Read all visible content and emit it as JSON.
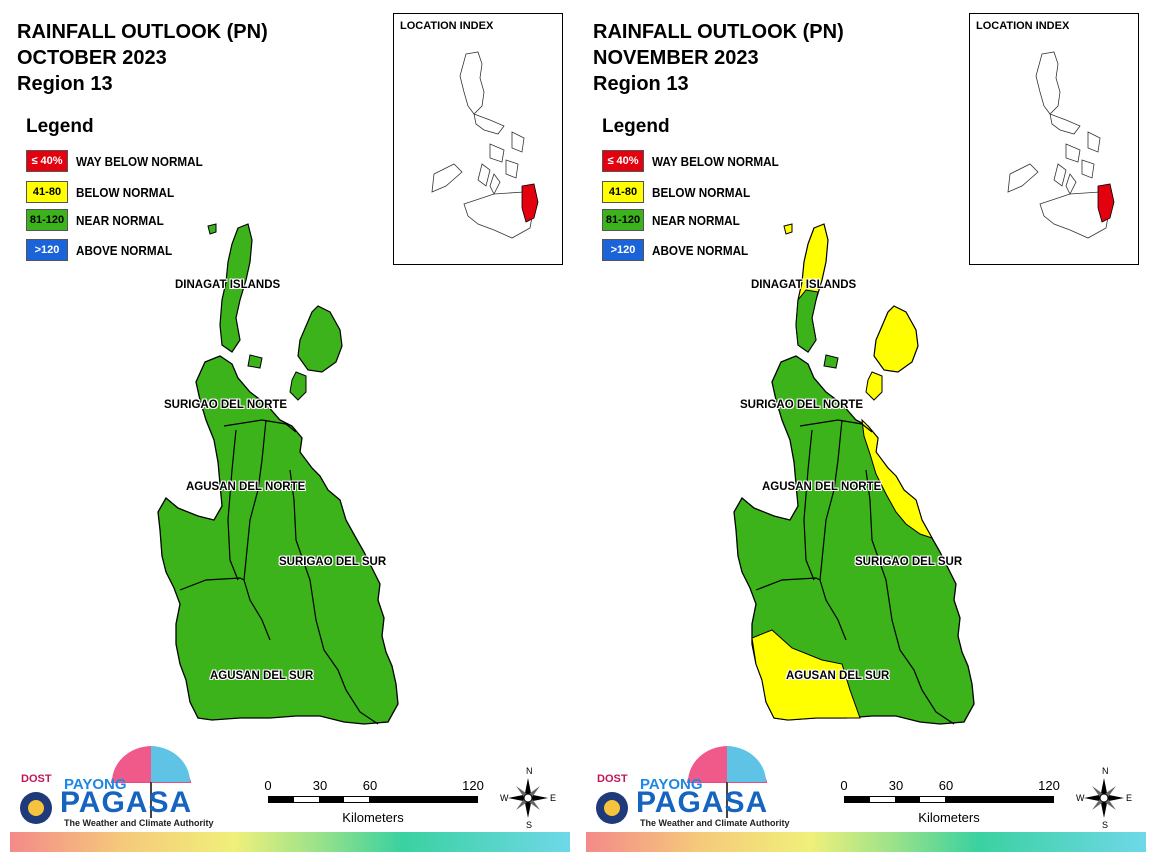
{
  "legend": {
    "title": "Legend",
    "items": [
      {
        "swatch": "≤ 40%",
        "label": "WAY BELOW NORMAL",
        "color": "#e3000f",
        "text_color": "#ffffff"
      },
      {
        "swatch": "41-80",
        "label": "BELOW NORMAL",
        "color": "#ffff00",
        "text_color": "#000000"
      },
      {
        "swatch": "81-120",
        "label": "NEAR NORMAL",
        "color": "#3cb21b",
        "text_color": "#000000"
      },
      {
        "swatch": ">120",
        "label": "ABOVE NORMAL",
        "color": "#1a63d8",
        "text_color": "#ffffff"
      }
    ]
  },
  "colors": {
    "near_normal": "#3cb21b",
    "below_normal": "#ffff00",
    "way_below_normal": "#e3000f",
    "above_normal": "#1a63d8"
  },
  "location_index": {
    "title": "LOCATION INDEX",
    "highlight_color": "#e3000f"
  },
  "provinces": [
    "DINAGAT ISLANDS",
    "SURIGAO DEL NORTE",
    "AGUSAN DEL NORTE",
    "SURIGAO DEL SUR",
    "AGUSAN DEL SUR"
  ],
  "scale_bar": {
    "ticks": [
      "0",
      "30",
      "60",
      "120"
    ],
    "unit": "Kilometers"
  },
  "compass": {
    "n": "N",
    "s": "S",
    "e": "E",
    "w": "W"
  },
  "logo": {
    "dost": "DOST",
    "payong": "PAYONG",
    "pagasa": "PAGASA",
    "tagline": "The Weather and Climate Authority"
  },
  "maps": [
    {
      "title": "RAINFALL OUTLOOK (PN)",
      "month": "OCTOBER 2023",
      "region": "Region 13",
      "province_categories": {
        "DINAGAT ISLANDS": "NEAR NORMAL",
        "SURIGAO DEL NORTE": "NEAR NORMAL",
        "AGUSAN DEL NORTE": "NEAR NORMAL",
        "SURIGAO DEL SUR": "NEAR NORMAL",
        "AGUSAN DEL SUR": "NEAR NORMAL"
      }
    },
    {
      "title": "RAINFALL OUTLOOK (PN)",
      "month": "NOVEMBER 2023",
      "region": "Region 13",
      "province_categories": {
        "DINAGAT ISLANDS": "BELOW NORMAL / NEAR NORMAL",
        "SURIGAO DEL NORTE": "BELOW NORMAL / NEAR NORMAL",
        "AGUSAN DEL NORTE": "NEAR NORMAL",
        "SURIGAO DEL SUR": "BELOW NORMAL / NEAR NORMAL",
        "AGUSAN DEL SUR": "BELOW NORMAL / NEAR NORMAL"
      }
    }
  ]
}
